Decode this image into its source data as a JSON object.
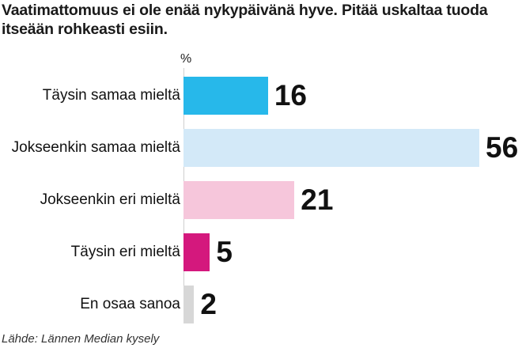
{
  "chart_data": {
    "type": "bar",
    "orientation": "horizontal",
    "title": "Vaatimattomuus ei ole enää nykypäivänä hyve. Pitää uskaltaa tuoda itseään rohkeasti esiin.",
    "unit_label": "%",
    "categories": [
      "Täysin samaa mieltä",
      "Jokseenkin samaa mieltä",
      "Jokseenkin eri mieltä",
      "Täysin eri mieltä",
      "En osaa sanoa"
    ],
    "values": [
      16,
      56,
      21,
      5,
      2
    ],
    "value_labels": [
      "16",
      "56",
      "21",
      "5",
      "2"
    ],
    "colors": [
      "#27b8ea",
      "#d3e9f8",
      "#f6c6db",
      "#d4187d",
      "#d7d7d7"
    ],
    "xlim": [
      0,
      56
    ],
    "grid": false,
    "legend": "none",
    "source": "Lähde: Lännen Median kysely"
  }
}
